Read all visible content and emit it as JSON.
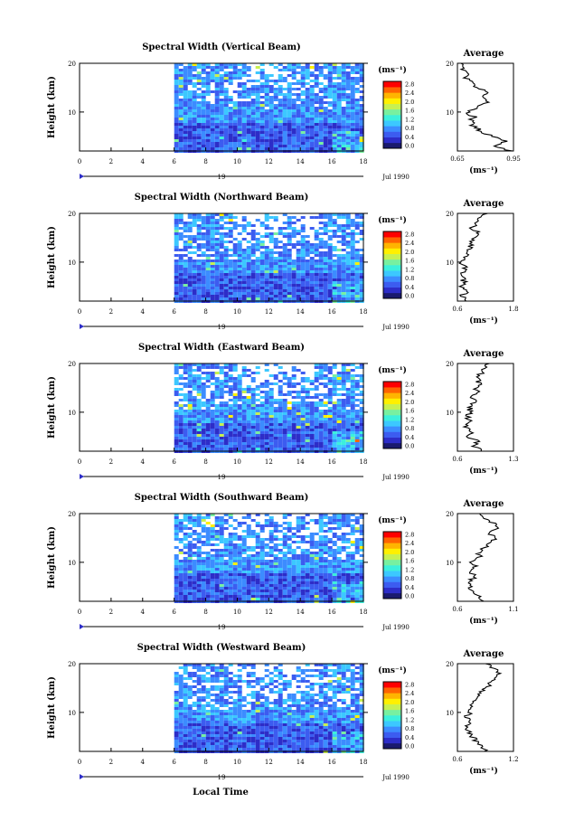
{
  "chart_data": {
    "type": "heatmap",
    "x_axis": {
      "ticks": [
        "0",
        "2",
        "4",
        "6",
        "8",
        "10",
        "12",
        "14",
        "16",
        "18"
      ],
      "range": [
        0,
        18
      ],
      "day_label": "19",
      "date_label": "Jul 1990",
      "xlabel": "Local Time"
    },
    "y_axis": {
      "label": "Height (km)",
      "ticks": [
        "10",
        "20"
      ],
      "range": [
        2,
        20
      ]
    },
    "colorbar": {
      "unit": "(ms⁻¹)",
      "ticks": [
        "0.0",
        "0.4",
        "0.8",
        "1.2",
        "1.6",
        "2.0",
        "2.4",
        "2.8"
      ],
      "colors": [
        "#1a1a6e",
        "#2d2dc8",
        "#3c5cf0",
        "#3c8cff",
        "#3cc8ff",
        "#3cf0dc",
        "#78f0a0",
        "#c8f050",
        "#fff000",
        "#ffb400",
        "#ff6400",
        "#ff0000"
      ]
    },
    "data_start_hour": 6,
    "panels": [
      {
        "title": "Spectral Width (Vertical Beam)",
        "average": {
          "title": "Average",
          "xlabel": "(ms⁻¹)",
          "xticks": [
            "0.65",
            "0.95"
          ],
          "xrange": [
            0.65,
            0.95
          ],
          "yticks": [
            "10",
            "20"
          ],
          "profile": [
            [
              2,
              0.93
            ],
            [
              3,
              0.86
            ],
            [
              4,
              0.9
            ],
            [
              5,
              0.84
            ],
            [
              6,
              0.78
            ],
            [
              7,
              0.74
            ],
            [
              8,
              0.72
            ],
            [
              9,
              0.74
            ],
            [
              10,
              0.7
            ],
            [
              11,
              0.76
            ],
            [
              12,
              0.8
            ],
            [
              13,
              0.78
            ],
            [
              14,
              0.83
            ],
            [
              15,
              0.76
            ],
            [
              16,
              0.72
            ],
            [
              17,
              0.7
            ],
            [
              18,
              0.7
            ],
            [
              19,
              0.68
            ],
            [
              20,
              0.67
            ]
          ]
        }
      },
      {
        "title": "Spectral Width (Northward Beam)",
        "average": {
          "title": "Average",
          "xlabel": "(ms⁻¹)",
          "xticks": [
            "0.6",
            "1.8"
          ],
          "xrange": [
            0.6,
            1.8
          ],
          "yticks": [
            "10",
            "20"
          ],
          "profile": [
            [
              2,
              0.75
            ],
            [
              3,
              0.7
            ],
            [
              4,
              0.78
            ],
            [
              5,
              0.68
            ],
            [
              6,
              0.74
            ],
            [
              7,
              0.7
            ],
            [
              8,
              0.72
            ],
            [
              9,
              0.74
            ],
            [
              10,
              0.7
            ],
            [
              11,
              0.8
            ],
            [
              12,
              0.76
            ],
            [
              13,
              0.86
            ],
            [
              14,
              0.9
            ],
            [
              15,
              0.95
            ],
            [
              16,
              1.05
            ],
            [
              17,
              0.9
            ],
            [
              18,
              1.0
            ],
            [
              19,
              1.1
            ],
            [
              20,
              1.25
            ]
          ]
        }
      },
      {
        "title": "Spectral Width (Eastward Beam)",
        "average": {
          "title": "Average",
          "xlabel": "(ms⁻¹)",
          "xticks": [
            "0.6",
            "1.3"
          ],
          "xrange": [
            0.6,
            1.3
          ],
          "yticks": [
            "10",
            "20"
          ],
          "profile": [
            [
              2,
              0.9
            ],
            [
              3,
              0.82
            ],
            [
              4,
              0.86
            ],
            [
              5,
              0.74
            ],
            [
              6,
              0.8
            ],
            [
              7,
              0.7
            ],
            [
              8,
              0.76
            ],
            [
              9,
              0.72
            ],
            [
              10,
              0.78
            ],
            [
              11,
              0.74
            ],
            [
              12,
              0.82
            ],
            [
              13,
              0.78
            ],
            [
              14,
              0.86
            ],
            [
              15,
              0.82
            ],
            [
              16,
              0.88
            ],
            [
              17,
              0.84
            ],
            [
              18,
              0.9
            ],
            [
              19,
              0.95
            ],
            [
              20,
              1.0
            ]
          ]
        }
      },
      {
        "title": "Spectral Width (Southward Beam)",
        "average": {
          "title": "Average",
          "xlabel": "(ms⁻¹)",
          "xticks": [
            "0.6",
            "1.1"
          ],
          "xrange": [
            0.6,
            1.1
          ],
          "yticks": [
            "10",
            "20"
          ],
          "profile": [
            [
              2,
              0.82
            ],
            [
              3,
              0.78
            ],
            [
              4,
              0.74
            ],
            [
              5,
              0.72
            ],
            [
              6,
              0.7
            ],
            [
              7,
              0.75
            ],
            [
              8,
              0.72
            ],
            [
              9,
              0.76
            ],
            [
              10,
              0.73
            ],
            [
              11,
              0.8
            ],
            [
              12,
              0.78
            ],
            [
              13,
              0.85
            ],
            [
              14,
              0.9
            ],
            [
              15,
              0.95
            ],
            [
              16,
              0.88
            ],
            [
              17,
              0.98
            ],
            [
              18,
              0.92
            ],
            [
              19,
              0.85
            ],
            [
              20,
              0.8
            ]
          ]
        }
      },
      {
        "title": "Spectral Width (Westward Beam)",
        "average": {
          "title": "Average",
          "xlabel": "(ms⁻¹)",
          "xticks": [
            "0.6",
            "1.2"
          ],
          "xrange": [
            0.6,
            1.2
          ],
          "yticks": [
            "10",
            "20"
          ],
          "profile": [
            [
              2,
              0.9
            ],
            [
              3,
              0.86
            ],
            [
              4,
              0.8
            ],
            [
              5,
              0.76
            ],
            [
              6,
              0.72
            ],
            [
              7,
              0.7
            ],
            [
              8,
              0.72
            ],
            [
              9,
              0.7
            ],
            [
              10,
              0.74
            ],
            [
              11,
              0.72
            ],
            [
              12,
              0.78
            ],
            [
              13,
              0.82
            ],
            [
              14,
              0.86
            ],
            [
              15,
              0.9
            ],
            [
              16,
              0.95
            ],
            [
              17,
              1.0
            ],
            [
              18,
              1.05
            ],
            [
              19,
              1.0
            ],
            [
              20,
              0.9
            ]
          ]
        }
      }
    ]
  }
}
